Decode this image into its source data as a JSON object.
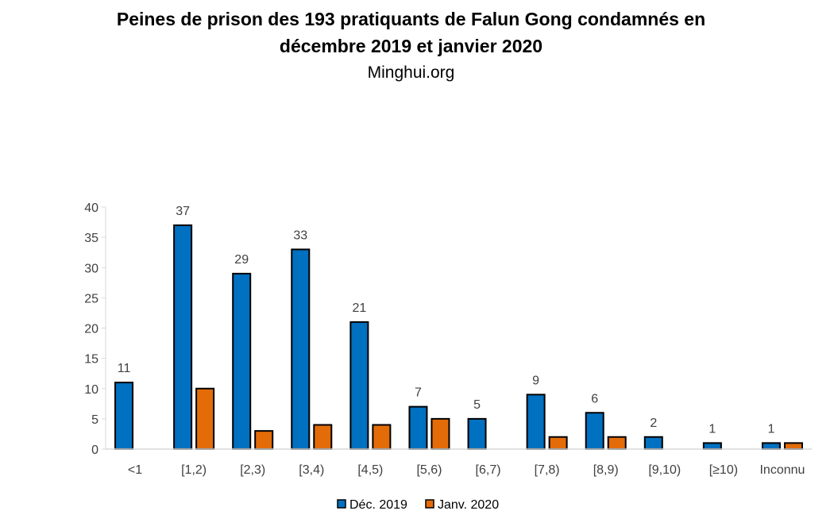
{
  "chart_data": {
    "type": "bar",
    "title": "Peines de prison des 193 pratiquants de Falun Gong condamnés en",
    "title_line2": "décembre 2019 et janvier 2020",
    "subtitle": "Minghui.org",
    "categories": [
      "<1",
      "[1,2)",
      "[2,3)",
      "[3,4)",
      "[4,5)",
      "[5,6)",
      "[6,7)",
      "[7,8)",
      "[8,9)",
      "[9,10)",
      "[≥10)",
      "Inconnu"
    ],
    "series": [
      {
        "name": "Déc. 2019",
        "color": "#0070C0",
        "values": [
          11,
          37,
          29,
          33,
          21,
          7,
          5,
          9,
          6,
          2,
          1,
          1
        ],
        "labels": true
      },
      {
        "name": "Janv. 2020",
        "color": "#E36C09",
        "values": [
          0,
          10,
          3,
          4,
          4,
          5,
          0,
          2,
          2,
          0,
          0,
          1
        ],
        "labels": false
      }
    ],
    "ylim": [
      0,
      40
    ],
    "yticks": [
      0,
      5,
      10,
      15,
      20,
      25,
      30,
      35,
      40
    ],
    "grid": false,
    "legend": "bottom"
  }
}
